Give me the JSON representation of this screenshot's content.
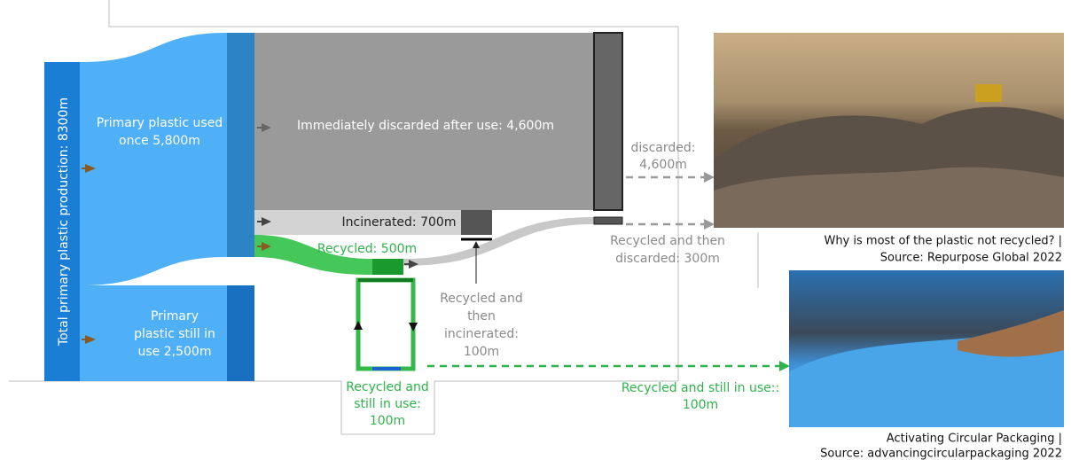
{
  "labels": {
    "total": "Total primary plastic production: 8300m",
    "primary_used_once": [
      "Primary plastic used",
      "once 5,800m"
    ],
    "discarded_after_use": "Immediately discarded after use: 4,600m",
    "incinerated": "Incinerated: 700m",
    "recycled": "Recycled: 500m",
    "discarded": [
      "discarded:",
      "4,600m"
    ],
    "recycled_discarded": [
      "Recycled and then",
      "discarded: 300m"
    ],
    "recycled_incinerated": [
      "Recycled and",
      "then",
      "incinerated:",
      "100m"
    ],
    "primary_still_in_use": [
      "Primary",
      "plastic still in",
      "use 2,500m"
    ],
    "recycled_still_in_use": [
      "Recycled and",
      "still in use:",
      "100m"
    ],
    "recycled_still_in_use_right": [
      "Recycled and still in use::",
      "100m"
    ]
  },
  "captions": {
    "landfill": [
      "Why is most of the plastic not recycled? |",
      "Source: Repurpose Global 2022"
    ],
    "packaging": [
      "Activating Circular Packaging |",
      "Source: advancingcircularpackaging 2022"
    ]
  }
}
